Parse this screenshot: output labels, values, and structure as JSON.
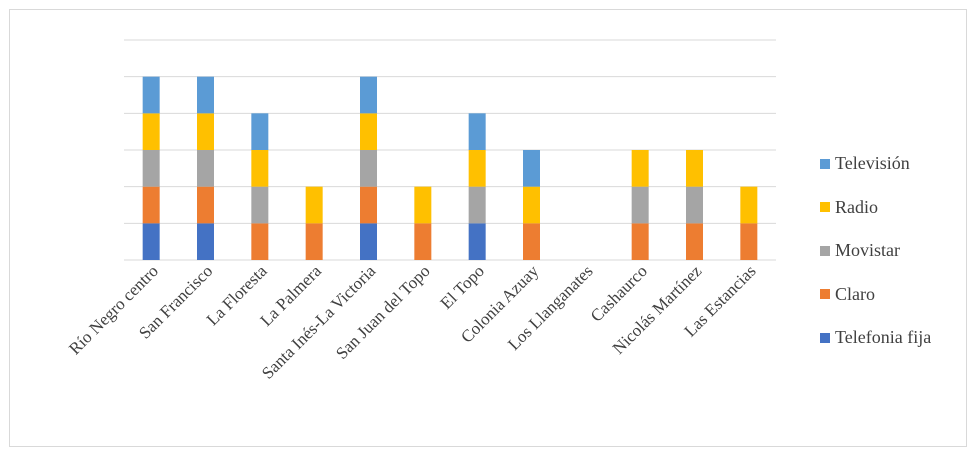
{
  "chart_data": {
    "type": "bar",
    "stacked": true,
    "categories": [
      "Río Negro centro",
      "San Francisco",
      "La Floresta",
      "La Palmera",
      "Santa Inés-La Victoria",
      "San Juan del Topo",
      "El Topo",
      "Colonia Azuay",
      "Los Llanganates",
      "Cashaurco",
      "Nicolás Martínez",
      "Las Estancias"
    ],
    "series": [
      {
        "name": "Telefonia fija",
        "color": "#4472C4",
        "values": [
          1,
          1,
          0,
          0,
          1,
          0,
          1,
          0,
          0,
          0,
          0,
          0
        ]
      },
      {
        "name": "Claro",
        "color": "#ED7D31",
        "values": [
          1,
          1,
          1,
          1,
          1,
          1,
          0,
          1,
          0,
          1,
          1,
          1
        ]
      },
      {
        "name": "Movistar",
        "color": "#A5A5A5",
        "values": [
          1,
          1,
          1,
          0,
          1,
          0,
          1,
          0,
          0,
          1,
          1,
          0
        ]
      },
      {
        "name": "Radio",
        "color": "#FFC000",
        "values": [
          1,
          1,
          1,
          1,
          1,
          1,
          1,
          1,
          0,
          1,
          1,
          1
        ]
      },
      {
        "name": "Televisión",
        "color": "#5B9BD5",
        "values": [
          1,
          1,
          1,
          0,
          1,
          0,
          1,
          1,
          0,
          0,
          0,
          0
        ]
      }
    ],
    "ylim": [
      0,
      6
    ],
    "grid": true,
    "legend_position": "right",
    "title": "",
    "xlabel": "",
    "ylabel": ""
  }
}
